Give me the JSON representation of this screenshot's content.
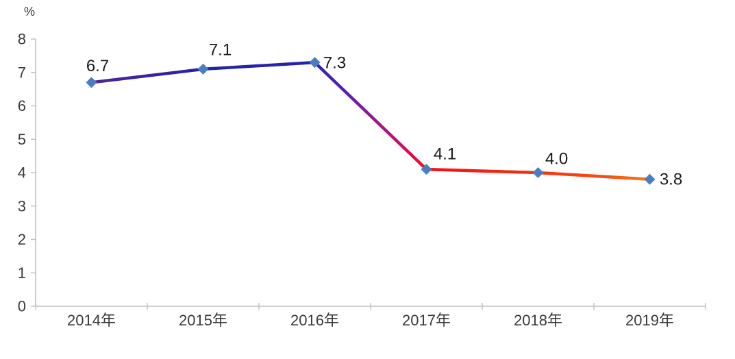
{
  "page": {
    "background": "#ffffff"
  },
  "chart_data": {
    "type": "line",
    "title": "",
    "xlabel": "",
    "ylabel": "%",
    "categories": [
      "2014年",
      "2015年",
      "2016年",
      "2017年",
      "2018年",
      "2019年"
    ],
    "values": [
      6.7,
      7.1,
      7.3,
      4.1,
      4.0,
      3.8
    ],
    "data_labels": [
      "6.7",
      "7.1",
      "7.3",
      "4.1",
      "4.0",
      "3.8"
    ],
    "ylim": [
      0,
      8
    ],
    "yticks": [
      "0",
      "1",
      "2",
      "3",
      "4",
      "5",
      "6",
      "7",
      "8"
    ],
    "grid": false,
    "legend": "none",
    "marker_shape": "diamond",
    "styles": {
      "marker_color": "#4a7ebe",
      "axis_color": "#bfbfbf",
      "axis_text_color": "#3b3b3b",
      "data_label_color": "#1a1a1a",
      "line_gradient_stops": [
        {
          "offset": 0.0,
          "color": "#4f2a93"
        },
        {
          "offset": 0.08,
          "color": "#3d22a0"
        },
        {
          "offset": 0.2,
          "color": "#2424a8"
        },
        {
          "offset": 0.4,
          "color": "#2b22ae"
        },
        {
          "offset": 0.47,
          "color": "#6e1bb2"
        },
        {
          "offset": 0.55,
          "color": "#cc0c68"
        },
        {
          "offset": 0.6,
          "color": "#f60d1c"
        },
        {
          "offset": 0.76,
          "color": "#f52a10"
        },
        {
          "offset": 0.92,
          "color": "#f64d11"
        },
        {
          "offset": 1.0,
          "color": "#fa7d15"
        }
      ]
    }
  }
}
